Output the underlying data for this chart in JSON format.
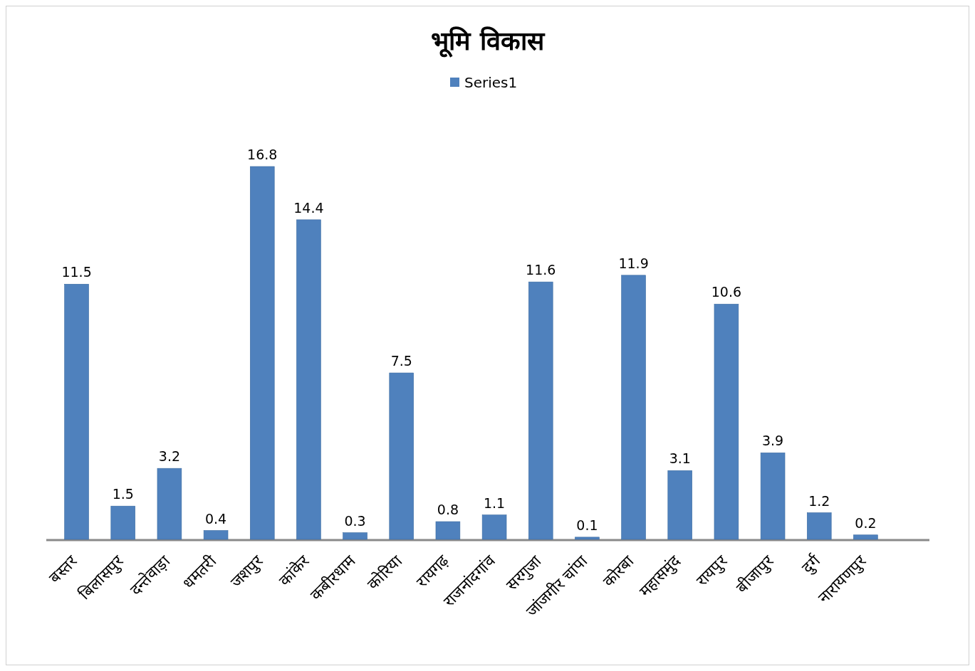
{
  "chart_data": {
    "type": "bar",
    "title": "भूमि विकास",
    "categories": [
      "बस्तर",
      "बिलासपुर",
      "दन्तेवाड़ा",
      "धमतरी",
      "जशपुर",
      "कांकेर",
      "कबीरधाम",
      "कोरिया",
      "रायगढ़",
      "राजनांदगांव",
      "सरगुजा",
      "जांजगीर चांपा",
      "कोरबा",
      "महासमुंद",
      "रायपुर",
      "बीजापुर",
      "दुर्ग",
      "नारायणपुर"
    ],
    "series": [
      {
        "name": "Series1",
        "color": "#4f81bd",
        "values": [
          11.5,
          1.5,
          3.2,
          0.4,
          16.8,
          14.4,
          0.3,
          7.5,
          0.8,
          1.1,
          11.6,
          0.1,
          11.9,
          3.1,
          10.6,
          3.9,
          1.2,
          0.2
        ]
      }
    ],
    "data_labels": true,
    "legend": "top"
  }
}
